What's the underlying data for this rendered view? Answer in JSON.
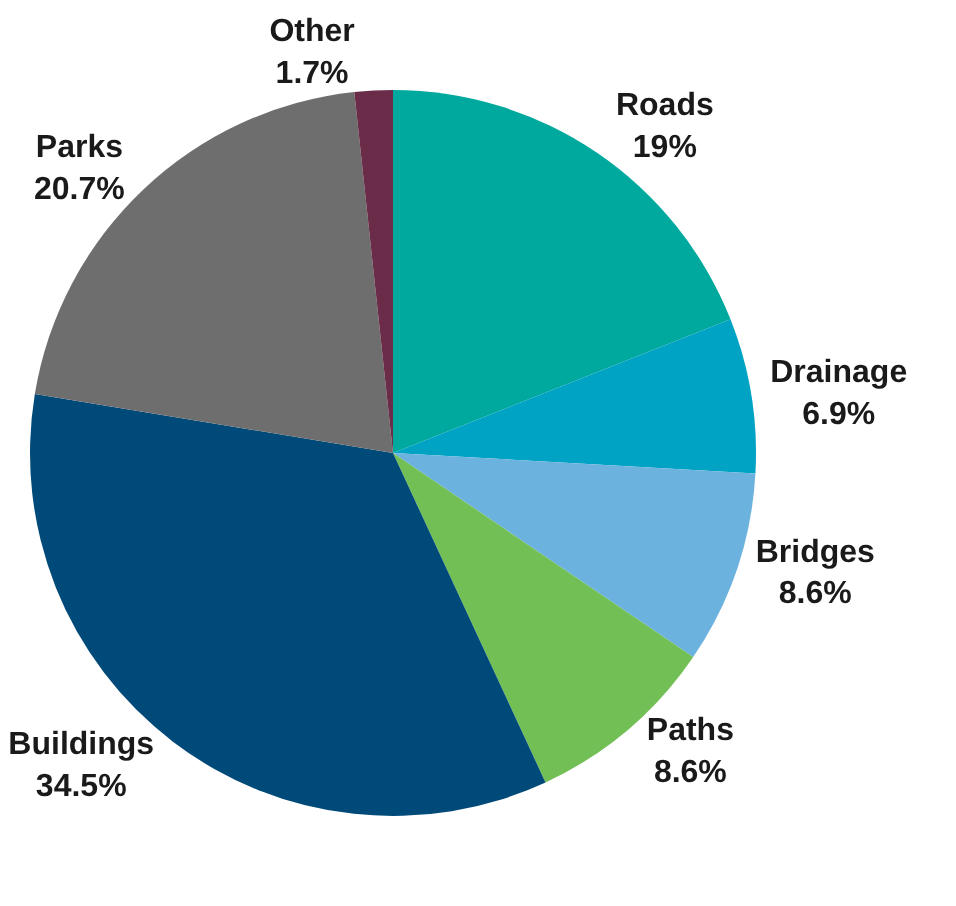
{
  "chart_data": {
    "type": "pie",
    "categories": [
      "Roads",
      "Drainage",
      "Bridges",
      "Paths",
      "Buildings",
      "Parks",
      "Other"
    ],
    "values": [
      19,
      6.9,
      8.6,
      8.6,
      34.5,
      20.7,
      1.7
    ],
    "value_labels": [
      "19%",
      "6.9%",
      "8.6%",
      "8.6%",
      "34.5%",
      "20.7%",
      "1.7%"
    ],
    "colors": [
      "#00a99d",
      "#00a3c4",
      "#6cb2df",
      "#72bf55",
      "#004a7a",
      "#6e6e6e",
      "#6a2c48"
    ],
    "legend": false
  }
}
